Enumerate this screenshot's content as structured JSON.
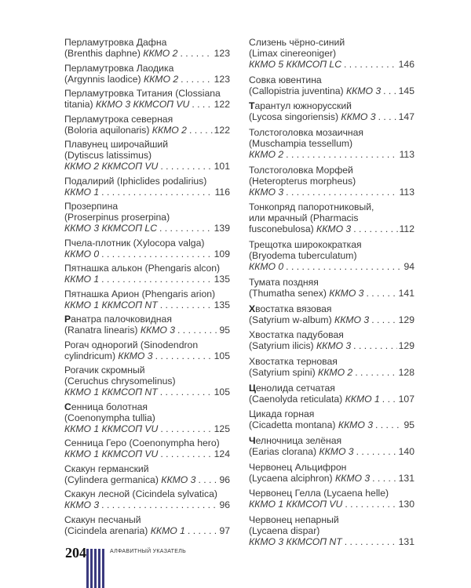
{
  "footer": {
    "page_number": "204",
    "section_title": "АЛФАВИТНЫЙ УКАЗАТЕЛЬ",
    "bar_color": "#3b3a7e",
    "bar_count": 5
  },
  "columns": {
    "left": [
      {
        "lines": [
          "Перламутровка Дафна"
        ],
        "last": {
          "pre": "(Brenthis daphne) ",
          "status": "ККМО 2",
          "page": "123"
        }
      },
      {
        "lines": [
          "Перламутровка Лаодика"
        ],
        "last": {
          "pre": "(Argynnis laodice) ",
          "status": "ККМО 2",
          "page": "123"
        }
      },
      {
        "lines": [
          "Перламутровка Титания (Clossiana"
        ],
        "last": {
          "pre": "titania) ",
          "status": "ККМО 3 ККМСОП VU",
          "page": "122"
        }
      },
      {
        "lines": [
          "Перламутрока северная"
        ],
        "last": {
          "pre": "(Boloria aquilonaris) ",
          "status": "ККМО 2",
          "page": "122"
        }
      },
      {
        "lines": [
          "Плавунец широчайший",
          "(Dytiscus latissimus)"
        ],
        "last": {
          "pre": "",
          "status": "ККМО 2 ККМСОП VU",
          "page": "101"
        }
      },
      {
        "lines": [
          "Подалирий (Iphiclides podalirius)"
        ],
        "last": {
          "pre": "",
          "status": "ККМО 1",
          "page": "116"
        }
      },
      {
        "lines": [
          "Прозерпина",
          "(Proserpinus proserpina)"
        ],
        "last": {
          "pre": "",
          "status": "ККМО 3 ККМСОП LC",
          "page": "139"
        }
      },
      {
        "lines": [
          "Пчела-плотник (Xylocopa valga)"
        ],
        "last": {
          "pre": "",
          "status": "ККМО 0",
          "page": "109"
        }
      },
      {
        "lines": [
          "Пятнашка алькон (Phengaris alcon)"
        ],
        "last": {
          "pre": "",
          "status": "ККМО 1",
          "page": "135"
        }
      },
      {
        "lines": [
          "Пятнашка Арион (Phengaris arion)"
        ],
        "last": {
          "pre": "",
          "status": "ККМО 1 ККМСОП NT",
          "page": "135"
        }
      },
      {
        "bold_first": true,
        "lines": [
          "Ранатра палочковидная"
        ],
        "last": {
          "pre": "(Ranatra linearis) ",
          "status": "ККМО 3",
          "page": "95"
        }
      },
      {
        "lines": [
          "Рогач однорогий (Sinodendron"
        ],
        "last": {
          "pre": "cylindricum) ",
          "status": "ККМО 3",
          "page": "105"
        }
      },
      {
        "lines": [
          "Рогачик скромный",
          "(Ceruchus chrysomelinus)"
        ],
        "last": {
          "pre": "",
          "status": "ККМО 1 ККМСОП NT",
          "page": "105"
        }
      },
      {
        "bold_first": true,
        "lines": [
          "Сенница болотная",
          "(Coenonympha tullia)"
        ],
        "last": {
          "pre": "",
          "status": "ККМО 1 ККМСОП VU",
          "page": "125"
        }
      },
      {
        "lines": [
          "Сенница Геро (Coenonympha hero)"
        ],
        "last": {
          "pre": "",
          "status": "ККМО 1 ККМСОП VU",
          "page": "124"
        }
      },
      {
        "lines": [
          "Скакун германский"
        ],
        "last": {
          "pre": "(Cylindera germanica) ",
          "status": "ККМО 3",
          "page": "96"
        }
      },
      {
        "lines": [
          "Скакун лесной (Cicindela sylvatica)"
        ],
        "last": {
          "pre": "",
          "status": "ККМО 3",
          "page": "96"
        }
      },
      {
        "lines": [
          "Скакун песчаный"
        ],
        "last": {
          "pre": "(Cicindela arenaria) ",
          "status": "ККМО 1",
          "page": "97"
        }
      }
    ],
    "right": [
      {
        "lines": [
          "Слизень чёрно-синий",
          "(Limax cinereoniger)"
        ],
        "last": {
          "pre": "",
          "status": "ККМО 5 ККМСОП LC",
          "page": "146"
        }
      },
      {
        "lines": [
          "Совка ювентина"
        ],
        "last": {
          "pre": "(Callopistria juventina) ",
          "status": "ККМО 3",
          "page": "145"
        }
      },
      {
        "bold_first": true,
        "lines": [
          "Тарантул южнорусский"
        ],
        "last": {
          "pre": "(Lycosa singoriensis) ",
          "status": "ККМО 3",
          "page": "147"
        }
      },
      {
        "lines": [
          "Толстоголовка мозаичная",
          "(Muschampia tessellum)"
        ],
        "last": {
          "pre": "",
          "status": "ККМО 2",
          "page": "113"
        }
      },
      {
        "lines": [
          "Толстоголовка Морфей",
          "(Heteropterus morpheus)"
        ],
        "last": {
          "pre": "",
          "status": "ККМО 3",
          "page": "113"
        }
      },
      {
        "lines": [
          "Тонкопряд папоротниковый,",
          "или мрачный (Pharmacis"
        ],
        "last": {
          "pre": "fusconebulosa) ",
          "status": "ККМО 3",
          "page": "112"
        }
      },
      {
        "lines": [
          "Трещотка широкократкая",
          "(Bryodema tuberculatum)"
        ],
        "last": {
          "pre": "",
          "status": "ККМО 0",
          "page": "94"
        }
      },
      {
        "lines": [
          "Тумата поздняя"
        ],
        "last": {
          "pre": "(Thumatha senex) ",
          "status": "ККМО 3",
          "page": "141"
        }
      },
      {
        "bold_first": true,
        "lines": [
          "Хвостатка вязовая"
        ],
        "last": {
          "pre": "(Satyrium w-album) ",
          "status": "ККМО 3",
          "page": "129"
        }
      },
      {
        "lines": [
          "Хвостатка падубовая"
        ],
        "last": {
          "pre": "(Satyrium ilicis) ",
          "status": "ККМО 3",
          "page": "129"
        }
      },
      {
        "lines": [
          "Хвостатка терновая"
        ],
        "last": {
          "pre": "(Satyrium spini) ",
          "status": "ККМО 2",
          "page": "128"
        }
      },
      {
        "bold_first": true,
        "lines": [
          "Ценолида сетчатая"
        ],
        "last": {
          "pre": "(Caenolyda reticulata) ",
          "status": "ККМО 1",
          "page": "107"
        }
      },
      {
        "lines": [
          "Цикада горная"
        ],
        "last": {
          "pre": "(Cicadetta montana) ",
          "status": "ККМО 3",
          "page": "95"
        }
      },
      {
        "bold_first": true,
        "lines": [
          "Челночница зелёная"
        ],
        "last": {
          "pre": "(Earias clorana) ",
          "status": "ККМО 3",
          "page": "140"
        }
      },
      {
        "lines": [
          "Червонец Альцифрон"
        ],
        "last": {
          "pre": "(Lycaena alciphron) ",
          "status": "ККМО 3",
          "page": "131"
        }
      },
      {
        "lines": [
          "Червонец Гелла (Lycaena helle)"
        ],
        "last": {
          "pre": "",
          "status": "ККМО 1 ККМСОП VU",
          "page": "130"
        }
      },
      {
        "lines": [
          "Червонец непарный",
          "(Lycaena dispar)"
        ],
        "last": {
          "pre": "",
          "status": "ККМО 3 ККМСОП NT",
          "page": "131"
        }
      }
    ]
  }
}
